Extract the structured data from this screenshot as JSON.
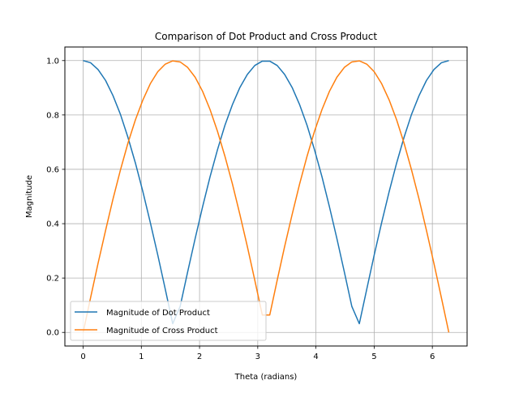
{
  "chart_data": {
    "type": "line",
    "title": "Comparison of Dot Product and Cross Product",
    "xlabel": "Theta (radians)",
    "ylabel": "Magnitude",
    "xlim": [
      -0.314,
      6.597
    ],
    "ylim": [
      -0.05,
      1.05
    ],
    "xticks": [
      0,
      1,
      2,
      3,
      4,
      5,
      6
    ],
    "yticks": [
      0.0,
      0.2,
      0.4,
      0.6,
      0.8,
      1.0
    ],
    "xtick_labels": [
      "0",
      "1",
      "2",
      "3",
      "4",
      "5",
      "6"
    ],
    "ytick_labels": [
      "0.0",
      "0.2",
      "0.4",
      "0.6",
      "0.8",
      "1.0"
    ],
    "grid": true,
    "legend_position": "lower left",
    "x": [
      0.0,
      0.128,
      0.256,
      0.385,
      0.513,
      0.641,
      0.769,
      0.898,
      1.026,
      1.154,
      1.282,
      1.411,
      1.539,
      1.667,
      1.795,
      1.924,
      2.052,
      2.18,
      2.308,
      2.436,
      2.565,
      2.693,
      2.821,
      2.949,
      3.078,
      3.206,
      3.334,
      3.462,
      3.591,
      3.719,
      3.847,
      3.975,
      4.104,
      4.232,
      4.36,
      4.488,
      4.616,
      4.745,
      4.873,
      5.001,
      5.129,
      5.258,
      5.386,
      5.514,
      5.642,
      5.771,
      5.899,
      6.027,
      6.155,
      6.283
    ],
    "series": [
      {
        "name": "Magnitude of Dot Product",
        "color": "#1f77b4",
        "values": [
          1.0,
          0.992,
          0.967,
          0.927,
          0.871,
          0.802,
          0.718,
          0.623,
          0.518,
          0.404,
          0.285,
          0.159,
          0.032,
          0.096,
          0.222,
          0.345,
          0.462,
          0.572,
          0.672,
          0.762,
          0.838,
          0.901,
          0.949,
          0.982,
          0.998,
          0.998,
          0.982,
          0.949,
          0.901,
          0.838,
          0.762,
          0.672,
          0.572,
          0.462,
          0.345,
          0.222,
          0.096,
          0.032,
          0.159,
          0.285,
          0.404,
          0.518,
          0.623,
          0.718,
          0.802,
          0.871,
          0.927,
          0.967,
          0.992,
          1.0
        ]
      },
      {
        "name": "Magnitude of Cross Product",
        "color": "#ff7f0e",
        "values": [
          0.0,
          0.128,
          0.254,
          0.375,
          0.491,
          0.598,
          0.696,
          0.782,
          0.855,
          0.915,
          0.959,
          0.987,
          0.999,
          0.995,
          0.975,
          0.939,
          0.887,
          0.82,
          0.74,
          0.648,
          0.546,
          0.434,
          0.316,
          0.192,
          0.064,
          0.064,
          0.192,
          0.316,
          0.434,
          0.546,
          0.648,
          0.74,
          0.82,
          0.887,
          0.939,
          0.975,
          0.995,
          0.999,
          0.987,
          0.959,
          0.915,
          0.855,
          0.782,
          0.696,
          0.598,
          0.491,
          0.375,
          0.254,
          0.128,
          0.0
        ]
      }
    ]
  }
}
